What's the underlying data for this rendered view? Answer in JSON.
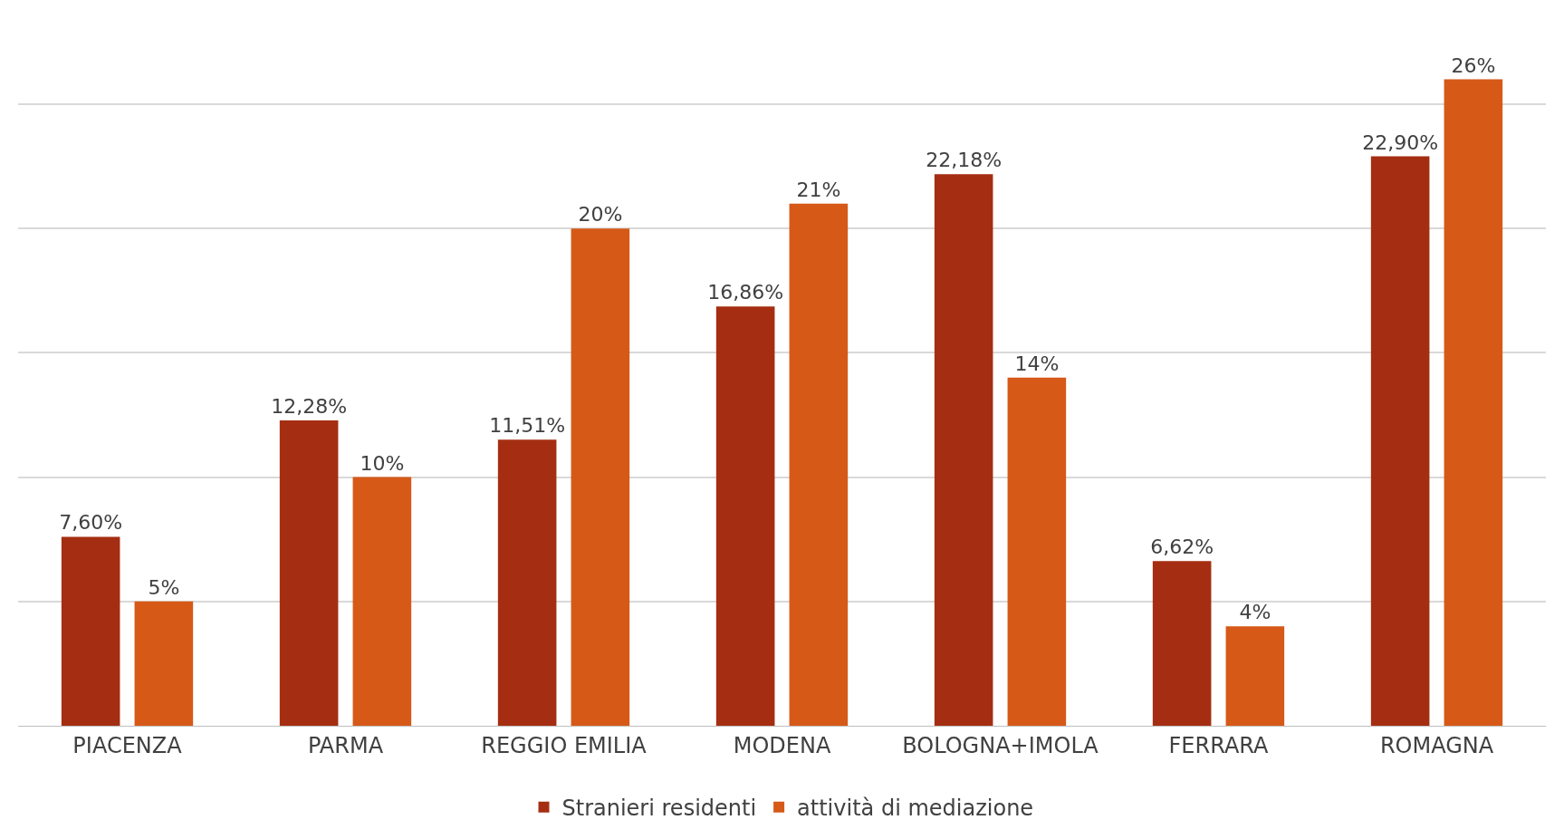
{
  "chart_data": {
    "type": "bar",
    "categories": [
      "PIACENZA",
      "PARMA",
      "REGGIO EMILIA",
      "MODENA",
      "BOLOGNA+IMOLA",
      "FERRARA",
      "ROMAGNA"
    ],
    "series": [
      {
        "name": "Stranieri residenti",
        "color": "#a52e12",
        "values": [
          7.6,
          12.28,
          11.51,
          16.86,
          22.18,
          6.62,
          22.9
        ],
        "value_labels": [
          "7,60%",
          "12,28%",
          "11,51%",
          "16,86%",
          "22,18%",
          "6,62%",
          "22,90%"
        ]
      },
      {
        "name": "attività di mediazione",
        "color": "#d65918",
        "values": [
          5,
          10,
          20,
          21,
          14,
          4,
          26
        ],
        "value_labels": [
          "5%",
          "10%",
          "20%",
          "21%",
          "14%",
          "4%",
          "26%"
        ]
      }
    ],
    "yticks": [
      {
        "value": 0,
        "label": null
      },
      {
        "value": 5,
        "label": null
      },
      {
        "value": 10,
        "label": null
      },
      {
        "value": 15,
        "label": null
      },
      {
        "value": 20,
        "label": null
      },
      {
        "value": 25,
        "label": null
      }
    ],
    "grid": "y",
    "legend": "bottom",
    "tick_labels": "x"
  }
}
